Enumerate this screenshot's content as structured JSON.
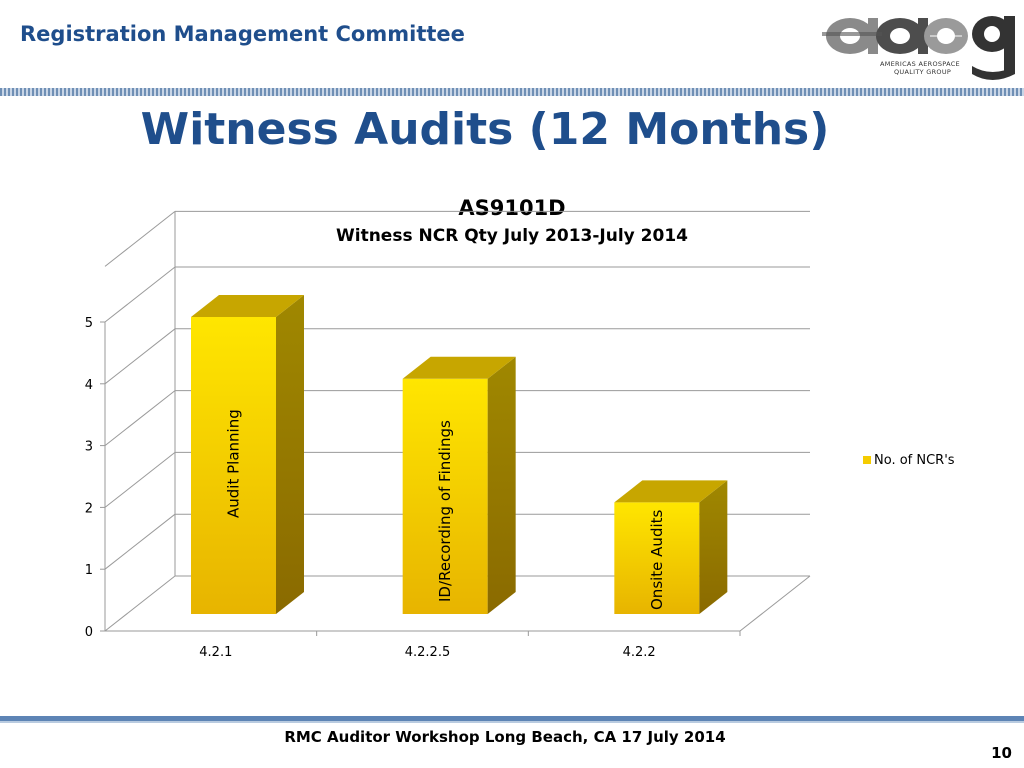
{
  "header": {
    "title": "Registration Management Committee",
    "logo_text": "aaqg",
    "logo_subtitle_line1": "AMERICAS AEROSPACE",
    "logo_subtitle_line2": "QUALITY GROUP"
  },
  "slide": {
    "title": "Witness Audits (12 Months)"
  },
  "chart_data": {
    "type": "bar",
    "title": "AS9101D",
    "subtitle": "Witness NCR Qty July 2013-July 2014",
    "categories": [
      "4.2.1",
      "4.2.2.5",
      "4.2.2"
    ],
    "series": [
      {
        "name": "No. of NCR's",
        "values": [
          5,
          4,
          2
        ]
      }
    ],
    "bar_labels": [
      "Audit Planning",
      "ID/Recording of Findings",
      "Onsite Audits"
    ],
    "y_ticks": [
      "0",
      "1",
      "2",
      "3",
      "4",
      "5"
    ],
    "ylim": [
      0,
      5
    ],
    "grid": true,
    "legend": "right",
    "style": "3d-column",
    "colors": {
      "bar_front": "#f5cc00",
      "bar_top": "#c7a600",
      "bar_side": "#9c8000",
      "grid": "#9a9a9a"
    }
  },
  "footer": {
    "text": "RMC Auditor Workshop Long Beach, CA 17 July 2014",
    "page_number": "10"
  }
}
